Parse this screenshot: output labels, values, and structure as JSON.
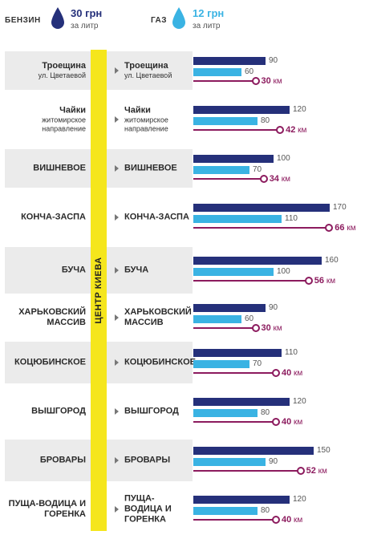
{
  "legend": {
    "petrol": {
      "name": "БЕНЗИН",
      "price": "30 грн",
      "unit": "за литр",
      "color": "#25307a"
    },
    "gas": {
      "name": "ГАЗ",
      "price": "12 грн",
      "unit": "за литр",
      "color": "#3ab3e3"
    }
  },
  "center_label": "ЦЕНТР КИЕВА",
  "chart_data": {
    "type": "bar",
    "categories": [
      "Троещина ул. Цветаевой",
      "Чайки житомирское направление",
      "ВИШНЕВОЕ",
      "КОНЧА-ЗАСПА",
      "БУЧА",
      "ХАРЬКОВСКИЙ МАССИВ",
      "КОЦЮБИНСКОЕ",
      "ВЫШГОРОД",
      "БРОВАРЫ",
      "ПУЩА-ВОДИЦА И ГОРЕНКА"
    ],
    "series": [
      {
        "name": "БЕНЗИН",
        "values": [
          90,
          120,
          100,
          170,
          160,
          90,
          110,
          120,
          150,
          120
        ]
      },
      {
        "name": "ГАЗ",
        "values": [
          60,
          80,
          70,
          110,
          100,
          60,
          70,
          80,
          90,
          80
        ]
      }
    ],
    "distance_unit": "км",
    "distances": [
      30,
      42,
      34,
      66,
      56,
      30,
      40,
      40,
      52,
      40
    ],
    "xlim": [
      0,
      180
    ]
  },
  "rows": [
    {
      "name": "Троещина",
      "sub": "ул. Цветаевой",
      "petrol": "90",
      "gas": "60",
      "dist": "30",
      "unit": "км"
    },
    {
      "name": "Чайки",
      "sub": "житомирское направление",
      "petrol": "120",
      "gas": "80",
      "dist": "42",
      "unit": "км"
    },
    {
      "name": "ВИШНЕВОЕ",
      "sub": "",
      "petrol": "100",
      "gas": "70",
      "dist": "34",
      "unit": "км"
    },
    {
      "name": "КОНЧА-ЗАСПА",
      "sub": "",
      "petrol": "170",
      "gas": "110",
      "dist": "66",
      "unit": "км"
    },
    {
      "name": "БУЧА",
      "sub": "",
      "petrol": "160",
      "gas": "100",
      "dist": "56",
      "unit": "км"
    },
    {
      "name": "ХАРЬКОВСКИЙ МАССИВ",
      "sub": "",
      "petrol": "90",
      "gas": "60",
      "dist": "30",
      "unit": "км"
    },
    {
      "name": "КОЦЮБИНСКОЕ",
      "sub": "",
      "petrol": "110",
      "gas": "70",
      "dist": "40",
      "unit": "км"
    },
    {
      "name": "ВЫШГОРОД",
      "sub": "",
      "petrol": "120",
      "gas": "80",
      "dist": "40",
      "unit": "км"
    },
    {
      "name": "БРОВАРЫ",
      "sub": "",
      "petrol": "150",
      "gas": "90",
      "dist": "52",
      "unit": "км"
    },
    {
      "name": "ПУЩА-ВОДИЦА И ГОРЕНКА",
      "sub": "",
      "petrol": "120",
      "gas": "80",
      "dist": "40",
      "unit": "км"
    }
  ]
}
